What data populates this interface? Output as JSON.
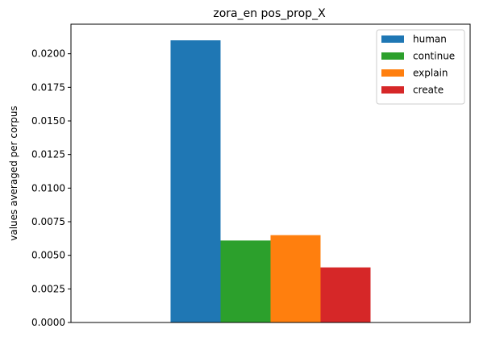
{
  "chart_data": {
    "type": "bar",
    "title": "zora_en pos_prop_X",
    "xlabel": "",
    "ylabel": "values averaged per corpus",
    "ylim": [
      0,
      0.0222
    ],
    "yticks": [
      "0.0000",
      "0.0025",
      "0.0050",
      "0.0075",
      "0.0100",
      "0.0125",
      "0.0150",
      "0.0175",
      "0.0200"
    ],
    "grid": false,
    "legend_position": "top-right",
    "series": [
      {
        "name": "human",
        "value": 0.021,
        "color": "#1f77b4"
      },
      {
        "name": "continue",
        "value": 0.0061,
        "color": "#2ca02c"
      },
      {
        "name": "explain",
        "value": 0.0065,
        "color": "#ff7f0e"
      },
      {
        "name": "create",
        "value": 0.0041,
        "color": "#d62728"
      }
    ]
  }
}
